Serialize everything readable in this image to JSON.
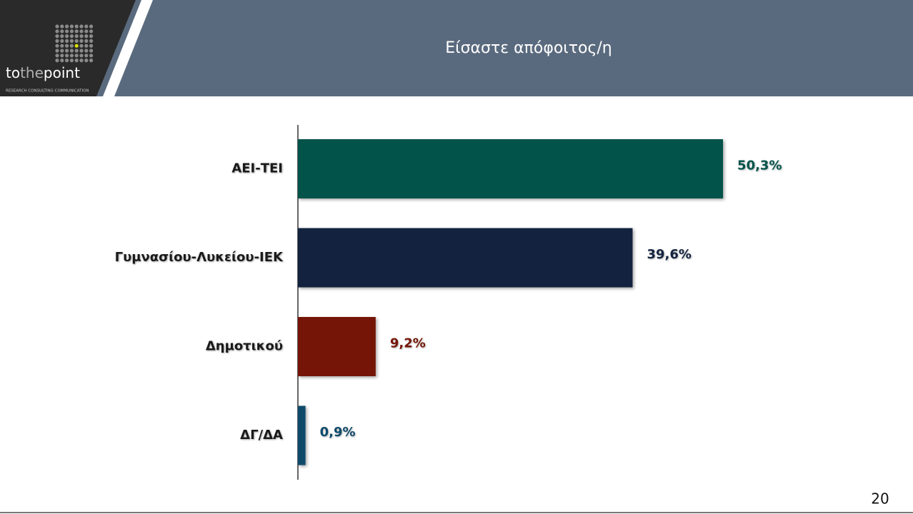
{
  "header": {
    "logo": [
      "to",
      "the",
      "point"
    ],
    "tagline": "RESEARCH  CONSULTING  COMMUNICATION"
  },
  "chart_data": {
    "type": "hbar",
    "title": "Είσαστε απόφοιτος/η",
    "categories": [
      "ΑΕΙ-ΤΕΙ",
      "Γυμνασίου-Λυκείου-ΙΕΚ",
      "Δημοτικού",
      "ΔΓ/ΔΑ"
    ],
    "values": [
      50.3,
      39.6,
      9.2,
      0.9
    ],
    "value_labels": [
      "50,3%",
      "39,6%",
      "9,2%",
      "0,9%"
    ],
    "colors": [
      "#02534a",
      "#13233f",
      "#751507",
      "#0f4a6b"
    ]
  },
  "footer": {
    "page_number": "20"
  }
}
